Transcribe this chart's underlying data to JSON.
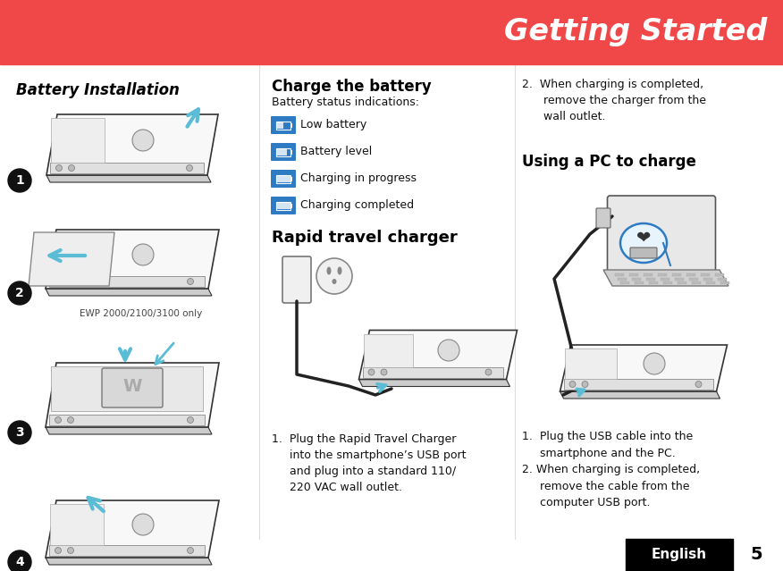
{
  "bg_color": "#ffffff",
  "header_color": "#f04848",
  "header_text": "Getting Started",
  "header_text_color": "#ffffff",
  "section1_title": "Battery Installation",
  "section2_title": "Charge the battery",
  "section2_subtitle": "Battery status indications:",
  "section2_bold": "Rapid travel charger",
  "section3_step2": "2.  When charging is completed,\n      remove the charger from the\n      wall outlet.",
  "section3_title": "Using a PC to charge",
  "icon_labels": [
    "Low battery",
    "Battery level",
    "Charging in progress",
    "Charging completed"
  ],
  "icon_bg_color": "#2e7bc4",
  "icon_text_color": "#ffffff",
  "rapid_step1": "1.  Plug the Rapid Travel Charger\n     into the smartphone’s USB port\n     and plug into a standard 110/\n     220 VAC wall outlet.",
  "pc_step1": "1.  Plug the USB cable into the\n     smartphone and the PC.",
  "pc_step2": "2. When charging is completed,\n     remove the cable from the\n     computer USB port.",
  "ewp_label": "EWP 2000/2100/3100 only",
  "footer_text": "English",
  "footer_num": "5",
  "footer_bg": "#000000",
  "footer_text_color": "#ffffff",
  "footer_num_color": "#000000",
  "circle_color": "#111111",
  "circle_text_color": "#ffffff",
  "title_color": "#000000",
  "body_color": "#111111",
  "phone_fill": "#f8f8f8",
  "phone_edge": "#333333",
  "arrow_color": "#5bbcd6",
  "cable_color": "#222222"
}
